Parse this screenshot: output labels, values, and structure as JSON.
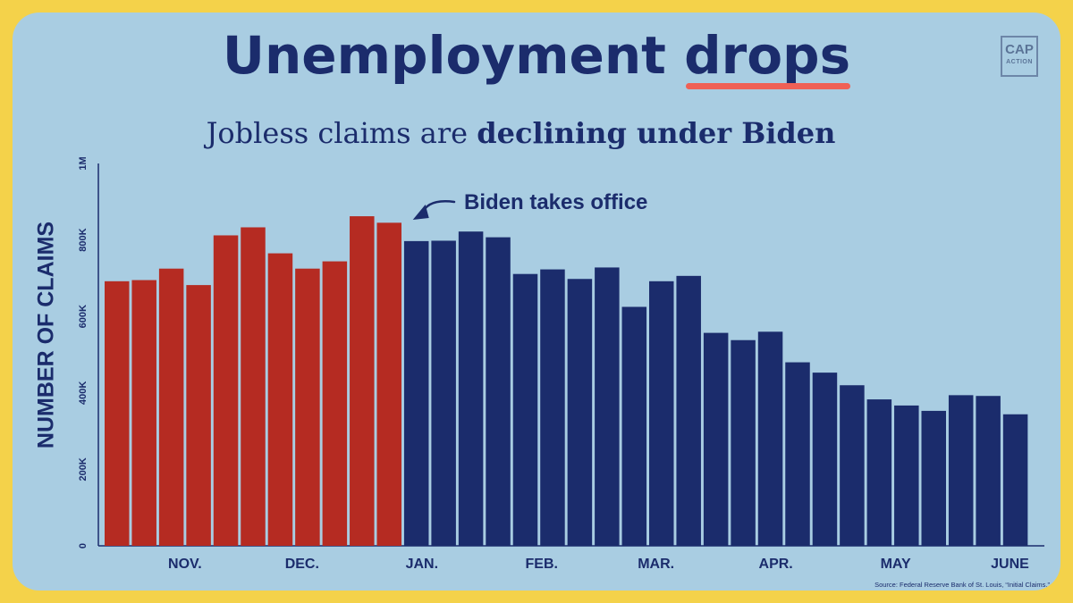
{
  "header": {
    "title_main": "Unemployment ",
    "title_accent": "drops",
    "subtitle_normal": "Jobless claims are ",
    "subtitle_bold": "declining under Biden"
  },
  "logo": {
    "line1": "CAP",
    "line2": "ACTION"
  },
  "annotation": {
    "text": "Biden takes office"
  },
  "source": "Source: Federal Reserve Bank of St. Louis, “Initial Claims.”",
  "colors": {
    "background_border": "#f4d24a",
    "panel": "#a9cde2",
    "trump_bars": "#b52b22",
    "biden_bars": "#1b2c6c",
    "text": "#1b2c6c",
    "underline": "#f06055"
  },
  "chart_data": {
    "type": "bar",
    "ylabel": "NUMBER OF CLAIMS",
    "ylim": [
      0,
      1000000
    ],
    "yticks": [
      {
        "value": 0,
        "label": "0"
      },
      {
        "value": 200000,
        "label": "200K"
      },
      {
        "value": 400000,
        "label": "400K"
      },
      {
        "value": 600000,
        "label": "600K"
      },
      {
        "value": 800000,
        "label": "800K"
      },
      {
        "value": 1000000,
        "label": "1M"
      }
    ],
    "month_labels": [
      {
        "label": "NOV.",
        "bar_index": 2.5
      },
      {
        "label": "DEC.",
        "bar_index": 6.8
      },
      {
        "label": "JAN.",
        "bar_index": 11.2
      },
      {
        "label": "FEB.",
        "bar_index": 15.6
      },
      {
        "label": "MAR.",
        "bar_index": 19.8
      },
      {
        "label": "APR.",
        "bar_index": 24.2
      },
      {
        "label": "MAY",
        "bar_index": 28.6
      },
      {
        "label": "JUNE",
        "bar_index": 32.8
      }
    ],
    "values": [
      692000,
      695000,
      725000,
      682000,
      812000,
      833000,
      765000,
      725000,
      744000,
      862000,
      845000,
      797000,
      798000,
      822000,
      807000,
      711000,
      723000,
      698000,
      728000,
      625000,
      692000,
      706000,
      557000,
      538000,
      560000,
      480000,
      453000,
      420000,
      383000,
      367000,
      353000,
      394000,
      392000,
      344000
    ],
    "administration": [
      "trump",
      "trump",
      "trump",
      "trump",
      "trump",
      "trump",
      "trump",
      "trump",
      "trump",
      "trump",
      "trump",
      "biden",
      "biden",
      "biden",
      "biden",
      "biden",
      "biden",
      "biden",
      "biden",
      "biden",
      "biden",
      "biden",
      "biden",
      "biden",
      "biden",
      "biden",
      "biden",
      "biden",
      "biden",
      "biden",
      "biden",
      "biden",
      "biden",
      "biden"
    ],
    "annotation_bar_index": 11,
    "grid": false
  }
}
